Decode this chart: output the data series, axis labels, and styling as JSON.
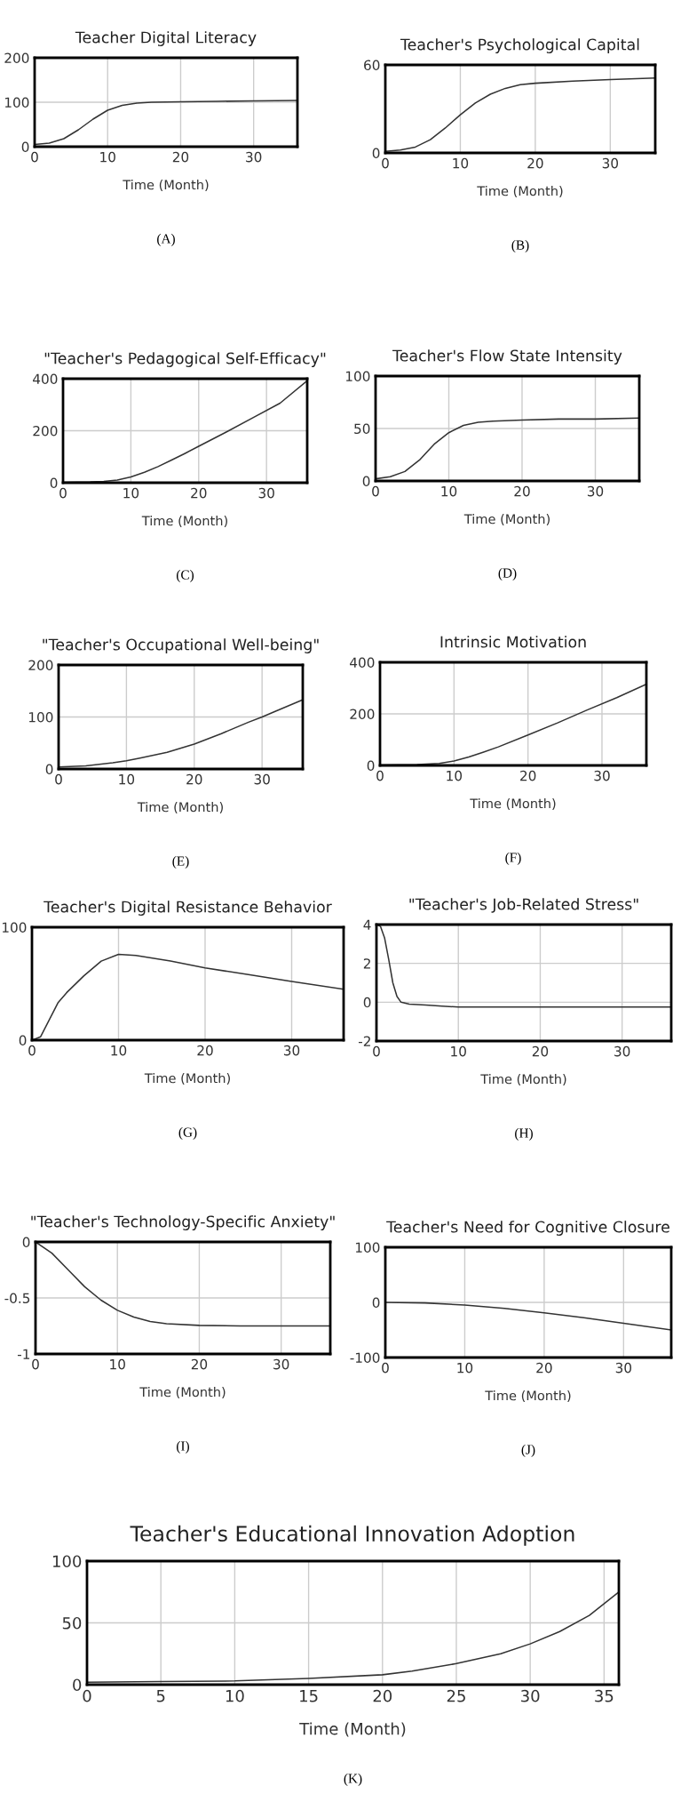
{
  "chart_data": [
    {
      "type": "line",
      "title": "Teacher Digital Literacy",
      "xlabel": "Time (Month)",
      "annotations": [
        "(A)"
      ],
      "xlim": [
        0,
        36
      ],
      "xticks": [
        0,
        10,
        20,
        30
      ],
      "ylim": [
        0,
        200
      ],
      "yticks": [
        0,
        100,
        200
      ],
      "grid": true,
      "series": [
        {
          "color": "#333333",
          "x": [
            0,
            2,
            4,
            6,
            8,
            10,
            12,
            14,
            16,
            20,
            25,
            30,
            36
          ],
          "values": [
            5,
            8,
            18,
            38,
            62,
            82,
            93,
            98,
            100,
            101,
            102,
            103,
            104
          ]
        }
      ]
    },
    {
      "type": "line",
      "title": "Teacher's Psychological Capital",
      "xlabel": "Time (Month)",
      "annotations": [
        "(B)"
      ],
      "xlim": [
        0,
        36
      ],
      "xticks": [
        0,
        10,
        20,
        30
      ],
      "ylim": [
        0,
        60
      ],
      "yticks": [
        0,
        60
      ],
      "grid": true,
      "series": [
        {
          "color": "#333333",
          "x": [
            0,
            2,
            4,
            6,
            8,
            10,
            12,
            14,
            16,
            18,
            20,
            25,
            30,
            36
          ],
          "values": [
            1,
            2,
            4,
            9,
            17,
            26,
            34,
            40,
            44,
            46.5,
            47.5,
            49,
            50,
            51
          ]
        }
      ]
    },
    {
      "type": "line",
      "title": "\"Teacher's Pedagogical Self-Efficacy\"",
      "xlabel": "Time (Month)",
      "annotations": [
        "(C)"
      ],
      "xlim": [
        0,
        36
      ],
      "xticks": [
        0,
        10,
        20,
        30
      ],
      "ylim": [
        0,
        400
      ],
      "yticks": [
        0,
        200,
        400
      ],
      "grid": true,
      "series": [
        {
          "color": "#333333",
          "x": [
            0,
            4,
            6,
            8,
            10,
            12,
            14,
            16,
            18,
            20,
            24,
            28,
            32,
            36
          ],
          "values": [
            2,
            3,
            5,
            10,
            22,
            40,
            62,
            87,
            113,
            140,
            194,
            250,
            306,
            392
          ]
        }
      ]
    },
    {
      "type": "line",
      "title": "Teacher's Flow State Intensity",
      "xlabel": "Time (Month)",
      "annotations": [
        "(D)"
      ],
      "xlim": [
        0,
        36
      ],
      "xticks": [
        0,
        10,
        20,
        30
      ],
      "ylim": [
        0,
        100
      ],
      "yticks": [
        0,
        50,
        100
      ],
      "grid": true,
      "series": [
        {
          "color": "#333333",
          "x": [
            0,
            2,
            4,
            6,
            8,
            10,
            12,
            14,
            16,
            20,
            25,
            30,
            36
          ],
          "values": [
            2,
            4,
            9,
            20,
            35,
            46,
            53,
            56,
            57,
            58,
            59,
            59,
            60
          ]
        }
      ]
    },
    {
      "type": "line",
      "title": "\"Teacher's Occupational Well-being\"",
      "xlabel": "Time (Month)",
      "annotations": [
        "(E)"
      ],
      "xlim": [
        0,
        36
      ],
      "xticks": [
        0,
        10,
        20,
        30
      ],
      "ylim": [
        0,
        200
      ],
      "yticks": [
        0,
        100,
        200
      ],
      "grid": true,
      "series": [
        {
          "color": "#333333",
          "x": [
            0,
            4,
            8,
            10,
            12,
            16,
            20,
            24,
            28,
            30,
            32,
            36
          ],
          "values": [
            4,
            6,
            12,
            16,
            21,
            32,
            48,
            68,
            90,
            100,
            111,
            133
          ]
        }
      ]
    },
    {
      "type": "line",
      "title": "Intrinsic Motivation",
      "xlabel": "Time (Month)",
      "annotations": [
        "(F)"
      ],
      "xlim": [
        0,
        36
      ],
      "xticks": [
        0,
        10,
        20,
        30
      ],
      "ylim": [
        0,
        400
      ],
      "yticks": [
        0,
        200,
        400
      ],
      "grid": true,
      "series": [
        {
          "color": "#333333",
          "x": [
            0,
            5,
            8,
            10,
            12,
            14,
            16,
            20,
            24,
            28,
            32,
            36
          ],
          "values": [
            2,
            3,
            8,
            17,
            33,
            52,
            72,
            118,
            165,
            215,
            263,
            315
          ]
        }
      ]
    },
    {
      "type": "line",
      "title": "Teacher's Digital Resistance Behavior",
      "xlabel": "Time (Month)",
      "annotations": [
        "(G)"
      ],
      "xlim": [
        0,
        36
      ],
      "xticks": [
        0,
        10,
        20,
        30
      ],
      "ylim": [
        0,
        100
      ],
      "yticks": [
        0,
        100
      ],
      "grid": true,
      "series": [
        {
          "color": "#333333",
          "x": [
            0,
            1,
            2,
            3,
            4,
            6,
            8,
            10,
            12,
            16,
            20,
            25,
            30,
            36
          ],
          "values": [
            0,
            3,
            18,
            33,
            42,
            57,
            70,
            76,
            75,
            70,
            64,
            58,
            52,
            45
          ]
        }
      ]
    },
    {
      "type": "line",
      "title": "\"Teacher's Job-Related Stress\"",
      "xlabel": "Time (Month)",
      "annotations": [
        "(H)"
      ],
      "xlim": [
        0,
        36
      ],
      "xticks": [
        0,
        10,
        20,
        30
      ],
      "ylim": [
        -2,
        4
      ],
      "yticks": [
        -2,
        0,
        2,
        4
      ],
      "grid": true,
      "series": [
        {
          "color": "#333333",
          "x": [
            0,
            0.5,
            1,
            1.5,
            2,
            2.5,
            3,
            4,
            6,
            8,
            10,
            15,
            36
          ],
          "values": [
            4,
            3.9,
            3.3,
            2.2,
            1.0,
            0.3,
            0.0,
            -0.1,
            -0.15,
            -0.2,
            -0.25,
            -0.25,
            -0.25
          ]
        }
      ]
    },
    {
      "type": "line",
      "title": "\"Teacher's Technology-Specific Anxiety\"",
      "xlabel": "Time (Month)",
      "annotations": [
        "(I)"
      ],
      "xlim": [
        0,
        36
      ],
      "xticks": [
        0,
        10,
        20,
        30
      ],
      "ylim": [
        -1,
        0
      ],
      "yticks": [
        {
          "value": -1,
          "label": "-1"
        },
        {
          "value": -0.5,
          "label": "-0.5"
        },
        0
      ],
      "grid": true,
      "series": [
        {
          "color": "#333333",
          "x": [
            0,
            2,
            4,
            6,
            8,
            10,
            12,
            14,
            16,
            20,
            25,
            36
          ],
          "values": [
            0,
            -0.1,
            -0.25,
            -0.4,
            -0.52,
            -0.61,
            -0.67,
            -0.71,
            -0.73,
            -0.745,
            -0.75,
            -0.75
          ]
        }
      ]
    },
    {
      "type": "line",
      "title": "Teacher's Need for Cognitive Closure",
      "xlabel": "Time (Month)",
      "annotations": [
        "(J)"
      ],
      "xlim": [
        0,
        36
      ],
      "xticks": [
        0,
        10,
        20,
        30
      ],
      "ylim": [
        -100,
        100
      ],
      "yticks": [
        {
          "value": -100,
          "label": "-100"
        },
        0,
        100
      ],
      "grid": true,
      "series": [
        {
          "color": "#333333",
          "x": [
            0,
            5,
            10,
            15,
            20,
            25,
            30,
            36
          ],
          "values": [
            0,
            -1,
            -5,
            -11,
            -19,
            -28,
            -38,
            -50
          ]
        }
      ]
    },
    {
      "type": "line",
      "title": "Teacher's Educational Innovation Adoption",
      "xlabel": "Time (Month)",
      "annotations": [
        "(K)"
      ],
      "xlim": [
        0,
        36
      ],
      "xticks": [
        0,
        5,
        10,
        15,
        20,
        25,
        30,
        35
      ],
      "ylim": [
        0,
        100
      ],
      "yticks": [
        0,
        50,
        100
      ],
      "grid": true,
      "series": [
        {
          "color": "#333333",
          "x": [
            0,
            5,
            10,
            15,
            20,
            22,
            25,
            28,
            30,
            32,
            34,
            36
          ],
          "values": [
            2,
            2.5,
            3,
            5,
            8,
            11,
            17,
            25,
            33,
            43,
            56,
            75
          ]
        }
      ]
    }
  ]
}
